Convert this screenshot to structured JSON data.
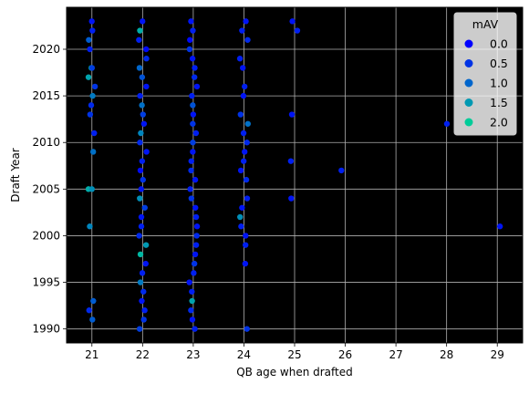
{
  "chart_data": {
    "type": "scatter",
    "title": "",
    "xlabel": "QB age when drafted",
    "ylabel": "Draft Year",
    "xlim": [
      20.5,
      29.5
    ],
    "ylim": [
      1988.5,
      2024.5
    ],
    "xticks": [
      21,
      22,
      23,
      24,
      25,
      26,
      27,
      28,
      29
    ],
    "yticks": [
      1990,
      1995,
      2000,
      2005,
      2010,
      2015,
      2020
    ],
    "background": "#000000",
    "grid": true,
    "legend": {
      "title": "mAV",
      "placement": "top-right",
      "entries": [
        {
          "label": "0.0",
          "color": "#0000ff"
        },
        {
          "label": "0.5",
          "color": "#0033e5"
        },
        {
          "label": "1.0",
          "color": "#0066cc"
        },
        {
          "label": "1.5",
          "color": "#0099b2"
        },
        {
          "label": "2.0",
          "color": "#00cc99"
        }
      ]
    },
    "color_scale": {
      "min": 0.0,
      "max": 2.0,
      "low_color": "#0000ff",
      "high_color": "#00cc99"
    },
    "points": [
      {
        "x": 21,
        "y": 2023,
        "mav": 0.2
      },
      {
        "x": 21,
        "y": 2022,
        "mav": 0.3
      },
      {
        "x": 21,
        "y": 2021,
        "mav": 0.9
      },
      {
        "x": 21,
        "y": 2020,
        "mav": 0.3
      },
      {
        "x": 21,
        "y": 2018,
        "mav": 2.0
      },
      {
        "x": 21,
        "y": 2018,
        "mav": 0.6
      },
      {
        "x": 21,
        "y": 2017,
        "mav": 1.6
      },
      {
        "x": 21,
        "y": 2016,
        "mav": 0.5
      },
      {
        "x": 21,
        "y": 2015,
        "mav": 1.2
      },
      {
        "x": 21,
        "y": 2014,
        "mav": 0.4
      },
      {
        "x": 21,
        "y": 2013,
        "mav": 0.5
      },
      {
        "x": 21,
        "y": 2011,
        "mav": 0.3
      },
      {
        "x": 21,
        "y": 2009,
        "mav": 1.1
      },
      {
        "x": 21,
        "y": 2005,
        "mav": 1.7
      },
      {
        "x": 21,
        "y": 2005,
        "mav": 1.4
      },
      {
        "x": 21,
        "y": 2001,
        "mav": 1.3
      },
      {
        "x": 21,
        "y": 1993,
        "mav": 0.9
      },
      {
        "x": 21,
        "y": 1992,
        "mav": 0.4
      },
      {
        "x": 21,
        "y": 1991,
        "mav": 0.9
      },
      {
        "x": 22,
        "y": 2023,
        "mav": 0.2
      },
      {
        "x": 22,
        "y": 2022,
        "mav": 1.7
      },
      {
        "x": 22,
        "y": 2021,
        "mav": 0.3
      },
      {
        "x": 22,
        "y": 2020,
        "mav": 0.1
      },
      {
        "x": 22,
        "y": 2019,
        "mav": 0.4
      },
      {
        "x": 22,
        "y": 2018,
        "mav": 1.0
      },
      {
        "x": 22,
        "y": 2017,
        "mav": 0.8
      },
      {
        "x": 22,
        "y": 2016,
        "mav": 0.2
      },
      {
        "x": 22,
        "y": 2015,
        "mav": 0.3
      },
      {
        "x": 22,
        "y": 2014,
        "mav": 1.1
      },
      {
        "x": 22,
        "y": 2013,
        "mav": 0.6
      },
      {
        "x": 22,
        "y": 2012,
        "mav": 0.2
      },
      {
        "x": 22,
        "y": 2011,
        "mav": 1.3
      },
      {
        "x": 22,
        "y": 2010,
        "mav": 0.4
      },
      {
        "x": 22,
        "y": 2009,
        "mav": 0.2
      },
      {
        "x": 22,
        "y": 2008,
        "mav": 0.3
      },
      {
        "x": 22,
        "y": 2007,
        "mav": 0.1
      },
      {
        "x": 22,
        "y": 2006,
        "mav": 0.5
      },
      {
        "x": 22,
        "y": 2005,
        "mav": 0.2
      },
      {
        "x": 22,
        "y": 2004,
        "mav": 1.4
      },
      {
        "x": 22,
        "y": 2003,
        "mav": 0.6
      },
      {
        "x": 22,
        "y": 2002,
        "mav": 0.2
      },
      {
        "x": 22,
        "y": 2001,
        "mav": 0.3
      },
      {
        "x": 22,
        "y": 2000,
        "mav": 0.4
      },
      {
        "x": 22,
        "y": 1999,
        "mav": 1.5
      },
      {
        "x": 22,
        "y": 1998,
        "mav": 1.8
      },
      {
        "x": 22,
        "y": 1997,
        "mav": 0.2
      },
      {
        "x": 22,
        "y": 1996,
        "mav": 0.3
      },
      {
        "x": 22,
        "y": 1995,
        "mav": 1.2
      },
      {
        "x": 22,
        "y": 1994,
        "mav": 0.4
      },
      {
        "x": 22,
        "y": 1993,
        "mav": 0.2
      },
      {
        "x": 22,
        "y": 1992,
        "mav": 0.3
      },
      {
        "x": 22,
        "y": 1991,
        "mav": 0.5
      },
      {
        "x": 22,
        "y": 1990,
        "mav": 0.6
      },
      {
        "x": 23,
        "y": 2023,
        "mav": 0.2
      },
      {
        "x": 23,
        "y": 2022,
        "mav": 0.3
      },
      {
        "x": 23,
        "y": 2021,
        "mav": 0.1
      },
      {
        "x": 23,
        "y": 2020,
        "mav": 0.5
      },
      {
        "x": 23,
        "y": 2019,
        "mav": 0.2
      },
      {
        "x": 23,
        "y": 2018,
        "mav": 0.3
      },
      {
        "x": 23,
        "y": 2017,
        "mav": 0.4
      },
      {
        "x": 23,
        "y": 2016,
        "mav": 0.2
      },
      {
        "x": 23,
        "y": 2015,
        "mav": 0.3
      },
      {
        "x": 23,
        "y": 2014,
        "mav": 0.8
      },
      {
        "x": 23,
        "y": 2013,
        "mav": 0.2
      },
      {
        "x": 23,
        "y": 2012,
        "mav": 0.5
      },
      {
        "x": 23,
        "y": 2011,
        "mav": 0.3
      },
      {
        "x": 23,
        "y": 2010,
        "mav": 0.6
      },
      {
        "x": 23,
        "y": 2009,
        "mav": 0.2
      },
      {
        "x": 23,
        "y": 2008,
        "mav": 0.3
      },
      {
        "x": 23,
        "y": 2007,
        "mav": 0.4
      },
      {
        "x": 23,
        "y": 2006,
        "mav": 0.2
      },
      {
        "x": 23,
        "y": 2005,
        "mav": 0.3
      },
      {
        "x": 23,
        "y": 2004,
        "mav": 0.5
      },
      {
        "x": 23,
        "y": 2003,
        "mav": 0.2
      },
      {
        "x": 23,
        "y": 2002,
        "mav": 0.3
      },
      {
        "x": 23,
        "y": 2001,
        "mav": 0.2
      },
      {
        "x": 23,
        "y": 2000,
        "mav": 0.4
      },
      {
        "x": 23,
        "y": 1999,
        "mav": 0.3
      },
      {
        "x": 23,
        "y": 1998,
        "mav": 0.2
      },
      {
        "x": 23,
        "y": 1997,
        "mav": 0.5
      },
      {
        "x": 23,
        "y": 1996,
        "mav": 0.3
      },
      {
        "x": 23,
        "y": 1995,
        "mav": 0.2
      },
      {
        "x": 23,
        "y": 1994,
        "mav": 0.3
      },
      {
        "x": 23,
        "y": 1993,
        "mav": 1.6
      },
      {
        "x": 23,
        "y": 1992,
        "mav": 0.4
      },
      {
        "x": 23,
        "y": 1991,
        "mav": 0.2
      },
      {
        "x": 23,
        "y": 1990,
        "mav": 0.3
      },
      {
        "x": 24,
        "y": 2023,
        "mav": 0.2
      },
      {
        "x": 24,
        "y": 2022,
        "mav": 0.3
      },
      {
        "x": 24,
        "y": 2021,
        "mav": 0.4
      },
      {
        "x": 24,
        "y": 2019,
        "mav": 0.3
      },
      {
        "x": 24,
        "y": 2018,
        "mav": 0.2
      },
      {
        "x": 24,
        "y": 2016,
        "mav": 0.3
      },
      {
        "x": 24,
        "y": 2015,
        "mav": 0.2
      },
      {
        "x": 24,
        "y": 2013,
        "mav": 0.5
      },
      {
        "x": 24,
        "y": 2012,
        "mav": 1.1
      },
      {
        "x": 24,
        "y": 2011,
        "mav": 0.3
      },
      {
        "x": 24,
        "y": 2010,
        "mav": 0.4
      },
      {
        "x": 24,
        "y": 2009,
        "mav": 0.2
      },
      {
        "x": 24,
        "y": 2008,
        "mav": 0.3
      },
      {
        "x": 24,
        "y": 2007,
        "mav": 0.2
      },
      {
        "x": 24,
        "y": 2006,
        "mav": 0.4
      },
      {
        "x": 24,
        "y": 2004,
        "mav": 0.3
      },
      {
        "x": 24,
        "y": 2003,
        "mav": 0.2
      },
      {
        "x": 24,
        "y": 2002,
        "mav": 1.4
      },
      {
        "x": 24,
        "y": 2001,
        "mav": 0.3
      },
      {
        "x": 24,
        "y": 2000,
        "mav": 0.2
      },
      {
        "x": 24,
        "y": 1999,
        "mav": 0.3
      },
      {
        "x": 24,
        "y": 1997,
        "mav": 0.2
      },
      {
        "x": 24,
        "y": 1990,
        "mav": 0.5
      },
      {
        "x": 25,
        "y": 2023,
        "mav": 0.2
      },
      {
        "x": 25,
        "y": 2022,
        "mav": 0.3
      },
      {
        "x": 25,
        "y": 2013,
        "mav": 0.2
      },
      {
        "x": 25,
        "y": 2008,
        "mav": 0.3
      },
      {
        "x": 25,
        "y": 2004,
        "mav": 0.2
      },
      {
        "x": 26,
        "y": 2007,
        "mav": 0.3
      },
      {
        "x": 28,
        "y": 2012,
        "mav": 0.3
      },
      {
        "x": 29,
        "y": 2001,
        "mav": 0.2
      }
    ]
  }
}
